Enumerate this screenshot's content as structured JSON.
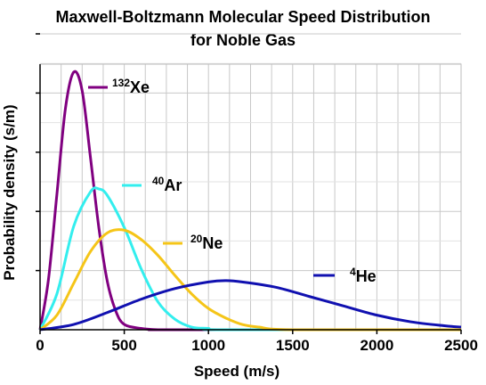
{
  "chart_data": {
    "type": "line",
    "title_line1": "Maxwell-Boltzmann Molecular Speed Distribution",
    "title_line2": "for Noble Gas",
    "xlabel": "Speed (m/s)",
    "ylabel": "Probability density (s/m)",
    "xlim": [
      0,
      2500
    ],
    "x_ticks": [
      0,
      500,
      1000,
      1500,
      2000,
      2500
    ],
    "x_tick_labels": [
      "0",
      "500",
      "1000",
      "1500",
      "2000",
      "2500"
    ],
    "y_ticks_unlabeled": 5,
    "grid": true,
    "legend_placement": "inline next to each curve",
    "series": [
      {
        "name": "Xe",
        "mass_number": "132",
        "color": "#800080",
        "x": [
          0,
          50,
          100,
          150,
          200,
          250,
          300,
          350,
          400,
          450,
          500,
          600,
          700,
          800,
          2500
        ],
        "y": [
          0,
          0.00038,
          0.00102,
          0.00166,
          0.00194,
          0.0018,
          0.00129,
          0.00076,
          0.00036,
          0.00014,
          4e-05,
          1e-05,
          0,
          0,
          0
        ]
      },
      {
        "name": "Ar",
        "mass_number": "40",
        "color": "#33eeee",
        "x": [
          0,
          100,
          200,
          300,
          350,
          400,
          500,
          600,
          700,
          800,
          900,
          1000,
          1100,
          2500
        ],
        "y": [
          0,
          0.00027,
          0.00078,
          0.00104,
          0.00106,
          0.00101,
          0.00077,
          0.00046,
          0.00021,
          8e-05,
          2e-05,
          1e-05,
          0,
          0
        ]
      },
      {
        "name": "Ne",
        "mass_number": "20",
        "color": "#f5c518",
        "x": [
          0,
          100,
          200,
          300,
          400,
          500,
          600,
          700,
          800,
          900,
          1000,
          1100,
          1200,
          1300,
          1500,
          2500
        ],
        "y": [
          0,
          0.00011,
          0.00035,
          0.00059,
          0.00073,
          0.00075,
          0.00068,
          0.00056,
          0.00041,
          0.00027,
          0.00016,
          9e-05,
          4e-05,
          2e-05,
          0,
          0
        ]
      },
      {
        "name": "He",
        "mass_number": "4",
        "color": "#1010b0",
        "x": [
          0,
          200,
          400,
          600,
          800,
          1000,
          1100,
          1200,
          1400,
          1600,
          1800,
          2000,
          2200,
          2400,
          2500
        ],
        "y": [
          0,
          4e-05,
          0.00013,
          0.00023,
          0.00031,
          0.00036,
          0.00037,
          0.00036,
          0.00032,
          0.00025,
          0.00018,
          0.00011,
          6e-05,
          3e-05,
          2e-05
        ]
      }
    ],
    "ylim": [
      0,
      0.002
    ]
  }
}
